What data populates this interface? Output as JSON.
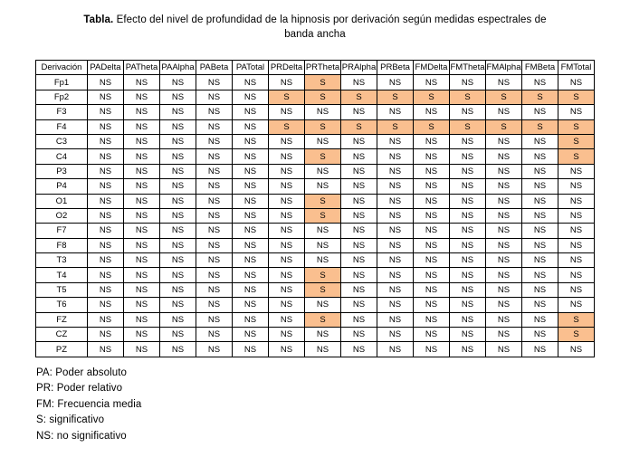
{
  "title": {
    "prefix": "Tabla.",
    "text": "Efecto del nivel de profundidad de la hipnosis por derivación según medidas espectrales de banda ancha"
  },
  "colors": {
    "highlight": "#FABF8F",
    "border": "#000000",
    "text": "#000000",
    "background": "#FFFFFF"
  },
  "table": {
    "significant_value": "S",
    "not_significant_value": "NS",
    "columns": [
      "Derivación",
      "PADelta",
      "PATheta",
      "PAAlpha",
      "PABeta",
      "PATotal",
      "PRDelta",
      "PRTheta",
      "PRAlpha",
      "PRBeta",
      "FMDelta",
      "FMTheta",
      "FMAlpha",
      "FMBeta",
      "FMTotal"
    ],
    "rows": [
      {
        "label": "Fp1",
        "values": [
          "NS",
          "NS",
          "NS",
          "NS",
          "NS",
          "NS",
          "S",
          "NS",
          "NS",
          "NS",
          "NS",
          "NS",
          "NS",
          "NS"
        ]
      },
      {
        "label": "Fp2",
        "values": [
          "NS",
          "NS",
          "NS",
          "NS",
          "NS",
          "S",
          "S",
          "S",
          "S",
          "S",
          "S",
          "S",
          "S",
          "S"
        ]
      },
      {
        "label": "F3",
        "values": [
          "NS",
          "NS",
          "NS",
          "NS",
          "NS",
          "NS",
          "NS",
          "NS",
          "NS",
          "NS",
          "NS",
          "NS",
          "NS",
          "NS"
        ]
      },
      {
        "label": "F4",
        "values": [
          "NS",
          "NS",
          "NS",
          "NS",
          "NS",
          "S",
          "S",
          "S",
          "S",
          "S",
          "S",
          "S",
          "S",
          "S"
        ]
      },
      {
        "label": "C3",
        "values": [
          "NS",
          "NS",
          "NS",
          "NS",
          "NS",
          "NS",
          "NS",
          "NS",
          "NS",
          "NS",
          "NS",
          "NS",
          "NS",
          "S"
        ]
      },
      {
        "label": "C4",
        "values": [
          "NS",
          "NS",
          "NS",
          "NS",
          "NS",
          "NS",
          "S",
          "NS",
          "NS",
          "NS",
          "NS",
          "NS",
          "NS",
          "S"
        ]
      },
      {
        "label": "P3",
        "values": [
          "NS",
          "NS",
          "NS",
          "NS",
          "NS",
          "NS",
          "NS",
          "NS",
          "NS",
          "NS",
          "NS",
          "NS",
          "NS",
          "NS"
        ]
      },
      {
        "label": "P4",
        "values": [
          "NS",
          "NS",
          "NS",
          "NS",
          "NS",
          "NS",
          "NS",
          "NS",
          "NS",
          "NS",
          "NS",
          "NS",
          "NS",
          "NS"
        ]
      },
      {
        "label": "O1",
        "values": [
          "NS",
          "NS",
          "NS",
          "NS",
          "NS",
          "NS",
          "S",
          "NS",
          "NS",
          "NS",
          "NS",
          "NS",
          "NS",
          "NS"
        ]
      },
      {
        "label": "O2",
        "values": [
          "NS",
          "NS",
          "NS",
          "NS",
          "NS",
          "NS",
          "S",
          "NS",
          "NS",
          "NS",
          "NS",
          "NS",
          "NS",
          "NS"
        ]
      },
      {
        "label": "F7",
        "values": [
          "NS",
          "NS",
          "NS",
          "NS",
          "NS",
          "NS",
          "NS",
          "NS",
          "NS",
          "NS",
          "NS",
          "NS",
          "NS",
          "NS"
        ]
      },
      {
        "label": "F8",
        "values": [
          "NS",
          "NS",
          "NS",
          "NS",
          "NS",
          "NS",
          "NS",
          "NS",
          "NS",
          "NS",
          "NS",
          "NS",
          "NS",
          "NS"
        ]
      },
      {
        "label": "T3",
        "values": [
          "NS",
          "NS",
          "NS",
          "NS",
          "NS",
          "NS",
          "NS",
          "NS",
          "NS",
          "NS",
          "NS",
          "NS",
          "NS",
          "NS"
        ]
      },
      {
        "label": "T4",
        "values": [
          "NS",
          "NS",
          "NS",
          "NS",
          "NS",
          "NS",
          "S",
          "NS",
          "NS",
          "NS",
          "NS",
          "NS",
          "NS",
          "NS"
        ]
      },
      {
        "label": "T5",
        "values": [
          "NS",
          "NS",
          "NS",
          "NS",
          "NS",
          "NS",
          "S",
          "NS",
          "NS",
          "NS",
          "NS",
          "NS",
          "NS",
          "NS"
        ]
      },
      {
        "label": "T6",
        "values": [
          "NS",
          "NS",
          "NS",
          "NS",
          "NS",
          "NS",
          "NS",
          "NS",
          "NS",
          "NS",
          "NS",
          "NS",
          "NS",
          "NS"
        ]
      },
      {
        "label": "FZ",
        "values": [
          "NS",
          "NS",
          "NS",
          "NS",
          "NS",
          "NS",
          "S",
          "NS",
          "NS",
          "NS",
          "NS",
          "NS",
          "NS",
          "S"
        ]
      },
      {
        "label": "CZ",
        "values": [
          "NS",
          "NS",
          "NS",
          "NS",
          "NS",
          "NS",
          "NS",
          "NS",
          "NS",
          "NS",
          "NS",
          "NS",
          "NS",
          "S"
        ]
      },
      {
        "label": "PZ",
        "values": [
          "NS",
          "NS",
          "NS",
          "NS",
          "NS",
          "NS",
          "NS",
          "NS",
          "NS",
          "NS",
          "NS",
          "NS",
          "NS",
          "NS"
        ]
      }
    ]
  },
  "legend": {
    "lines": [
      "PA: Poder absoluto",
      "PR: Poder relativo",
      "FM: Frecuencia media",
      "S: significativo",
      "NS: no significativo"
    ]
  }
}
